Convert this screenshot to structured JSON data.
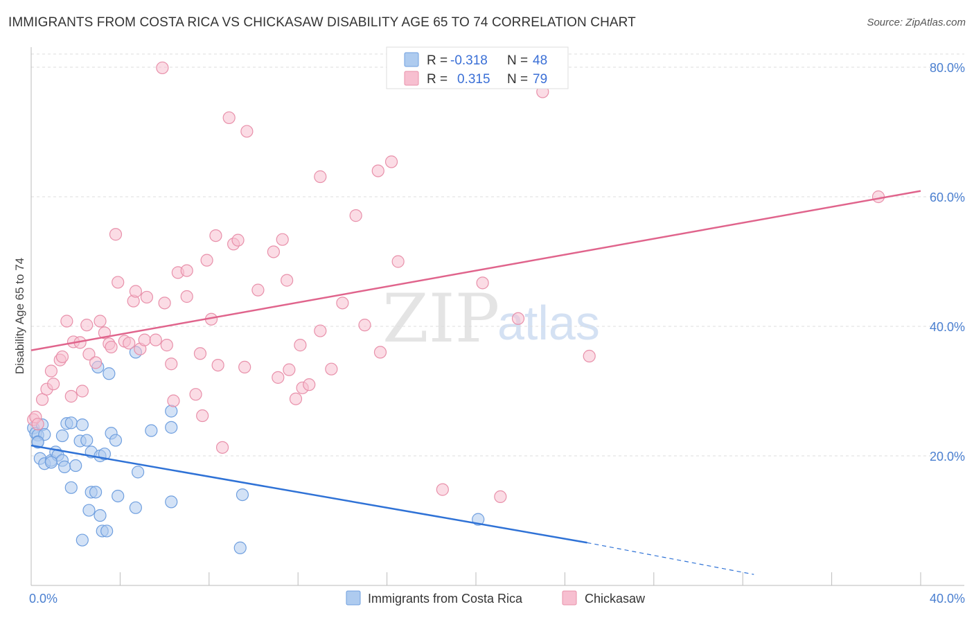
{
  "title": "IMMIGRANTS FROM COSTA RICA VS CHICKASAW DISABILITY AGE 65 TO 74 CORRELATION CHART",
  "source": "Source: ZipAtlas.com",
  "watermark": {
    "zip": "ZIP",
    "atlas": "atlas"
  },
  "legend_top": [
    {
      "r_label": "R =",
      "r_value": "-0.318",
      "n_label": "N =",
      "n_value": "48",
      "color": "#aecbef",
      "stroke": "#6f9fdf"
    },
    {
      "r_label": "R =",
      "r_value": "0.315",
      "n_label": "N =",
      "n_value": "79",
      "color": "#f7bfd0",
      "stroke": "#e890aa"
    }
  ],
  "legend_bottom": [
    {
      "label": "Immigrants from Costa Rica",
      "color": "#aecbef",
      "stroke": "#6f9fdf"
    },
    {
      "label": "Chickasaw",
      "color": "#f7bfd0",
      "stroke": "#e890aa"
    }
  ],
  "chart_data": {
    "type": "scatter",
    "title": "IMMIGRANTS FROM COSTA RICA VS CHICKASAW DISABILITY AGE 65 TO 74 CORRELATION CHART",
    "xlabel": "",
    "ylabel": "Disability Age 65 to 74",
    "xlim": [
      0,
      40
    ],
    "ylim": [
      0,
      80
    ],
    "x_tick_labels": [
      "0.0%",
      "40.0%"
    ],
    "y_tick_labels": [
      "20.0%",
      "40.0%",
      "60.0%",
      "80.0%"
    ],
    "y_ticks": [
      20,
      40,
      60,
      80
    ],
    "grid": true,
    "series": [
      {
        "name": "Immigrants from Costa Rica",
        "color": "#6f9fdf",
        "fill": "#aecbef",
        "trend_color": "#2f72d6",
        "trend": {
          "x0": 0,
          "y0": 21.6,
          "x1": 25,
          "y1": 6.6,
          "dashed_to_x": 32.5,
          "dashed_to_y": 1.7
        },
        "points": [
          [
            0.1,
            24.3
          ],
          [
            0.2,
            23.5
          ],
          [
            0.3,
            23.2
          ],
          [
            0.3,
            22.2
          ],
          [
            0.5,
            24.8
          ],
          [
            0.6,
            23.3
          ],
          [
            0.4,
            19.6
          ],
          [
            0.6,
            18.8
          ],
          [
            0.9,
            19.3
          ],
          [
            1.1,
            20.6
          ],
          [
            1.2,
            20.1
          ],
          [
            1.4,
            19.3
          ],
          [
            1.5,
            18.3
          ],
          [
            1.4,
            23.1
          ],
          [
            1.6,
            25.0
          ],
          [
            1.8,
            25.1
          ],
          [
            2.0,
            18.5
          ],
          [
            2.2,
            22.3
          ],
          [
            2.3,
            24.8
          ],
          [
            2.5,
            22.4
          ],
          [
            2.7,
            20.6
          ],
          [
            3.1,
            20.0
          ],
          [
            3.3,
            20.3
          ],
          [
            3.6,
            23.5
          ],
          [
            3.8,
            22.4
          ],
          [
            1.8,
            15.1
          ],
          [
            2.7,
            14.4
          ],
          [
            2.9,
            14.4
          ],
          [
            3.9,
            13.8
          ],
          [
            4.8,
            17.5
          ],
          [
            5.4,
            23.9
          ],
          [
            6.3,
            26.9
          ],
          [
            6.3,
            24.4
          ],
          [
            3.0,
            33.7
          ],
          [
            3.5,
            32.7
          ],
          [
            4.7,
            36.0
          ],
          [
            2.6,
            11.6
          ],
          [
            3.1,
            10.8
          ],
          [
            4.7,
            12.0
          ],
          [
            6.3,
            12.9
          ],
          [
            3.2,
            8.4
          ],
          [
            3.4,
            8.4
          ],
          [
            2.3,
            7.0
          ],
          [
            9.5,
            14.0
          ],
          [
            9.4,
            5.8
          ],
          [
            20.1,
            10.2
          ],
          [
            0.3,
            22.1
          ],
          [
            0.9,
            19.0
          ]
        ]
      },
      {
        "name": "Chickasaw",
        "color": "#e890aa",
        "fill": "#f7bfd0",
        "trend_color": "#e0648c",
        "trend": {
          "x0": 0,
          "y0": 36.3,
          "x1": 40,
          "y1": 60.9
        },
        "points": [
          [
            0.1,
            25.6
          ],
          [
            0.2,
            26.0
          ],
          [
            0.3,
            24.9
          ],
          [
            0.5,
            28.7
          ],
          [
            0.7,
            30.3
          ],
          [
            0.9,
            33.1
          ],
          [
            1.0,
            31.1
          ],
          [
            1.3,
            34.8
          ],
          [
            1.4,
            35.3
          ],
          [
            1.6,
            40.8
          ],
          [
            1.8,
            29.2
          ],
          [
            1.9,
            37.6
          ],
          [
            2.2,
            37.5
          ],
          [
            2.3,
            30.0
          ],
          [
            2.5,
            40.2
          ],
          [
            2.6,
            35.7
          ],
          [
            2.9,
            34.4
          ],
          [
            3.1,
            40.8
          ],
          [
            3.3,
            39.0
          ],
          [
            3.5,
            37.3
          ],
          [
            3.6,
            36.8
          ],
          [
            3.8,
            54.2
          ],
          [
            3.9,
            46.8
          ],
          [
            4.2,
            37.7
          ],
          [
            4.4,
            37.4
          ],
          [
            4.6,
            43.9
          ],
          [
            4.7,
            45.4
          ],
          [
            4.9,
            36.5
          ],
          [
            5.1,
            37.9
          ],
          [
            5.2,
            44.5
          ],
          [
            5.6,
            37.9
          ],
          [
            6.0,
            43.6
          ],
          [
            6.1,
            37.1
          ],
          [
            6.3,
            34.2
          ],
          [
            6.4,
            28.5
          ],
          [
            6.6,
            48.3
          ],
          [
            7.0,
            48.6
          ],
          [
            7.0,
            44.6
          ],
          [
            7.4,
            29.5
          ],
          [
            7.6,
            35.8
          ],
          [
            7.7,
            26.2
          ],
          [
            7.9,
            50.2
          ],
          [
            8.1,
            41.1
          ],
          [
            8.3,
            54.0
          ],
          [
            8.4,
            34.0
          ],
          [
            8.6,
            21.3
          ],
          [
            8.9,
            72.2
          ],
          [
            9.1,
            52.7
          ],
          [
            9.3,
            53.3
          ],
          [
            9.6,
            33.7
          ],
          [
            9.7,
            70.1
          ],
          [
            10.2,
            45.6
          ],
          [
            10.9,
            51.5
          ],
          [
            11.1,
            32.1
          ],
          [
            11.3,
            53.4
          ],
          [
            11.5,
            47.1
          ],
          [
            11.6,
            33.3
          ],
          [
            11.9,
            28.8
          ],
          [
            12.1,
            37.1
          ],
          [
            12.2,
            30.5
          ],
          [
            12.5,
            31.0
          ],
          [
            13.0,
            63.1
          ],
          [
            13.0,
            39.3
          ],
          [
            13.5,
            33.4
          ],
          [
            14.0,
            43.6
          ],
          [
            14.6,
            57.1
          ],
          [
            15.0,
            40.2
          ],
          [
            15.6,
            64.0
          ],
          [
            15.7,
            36.0
          ],
          [
            16.2,
            65.4
          ],
          [
            16.5,
            50.0
          ],
          [
            18.5,
            14.8
          ],
          [
            20.3,
            46.7
          ],
          [
            21.1,
            13.7
          ],
          [
            21.9,
            41.2
          ],
          [
            25.1,
            35.4
          ],
          [
            38.1,
            60.0
          ],
          [
            5.9,
            79.9
          ],
          [
            23.0,
            76.2
          ]
        ]
      }
    ]
  }
}
